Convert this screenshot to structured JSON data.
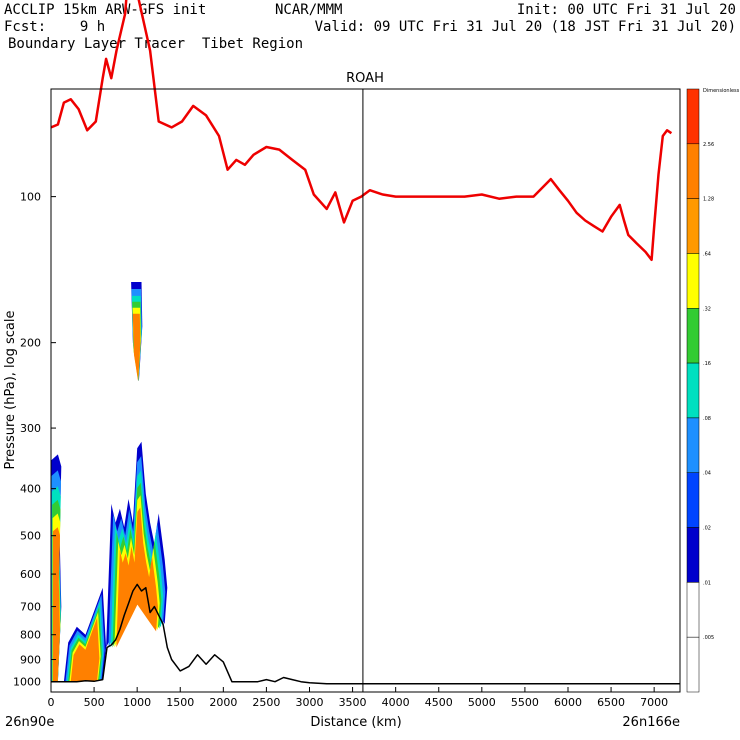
{
  "header": {
    "line1_left": "ACCLIP 15km ARW-GFS init",
    "line1_center": "NCAR/MMM",
    "line1_right": "Init: 00 UTC Fri 31 Jul 20",
    "line2_left": "Fcst:    9 h",
    "line2_right": "Valid: 09 UTC Fri 31 Jul 20 (18 JST Fri 31 Jul 20)",
    "line3_left": "Boundary Layer Tracer  Tibet Region"
  },
  "chart_data": {
    "type": "cross-section",
    "title": "ROAH",
    "xlabel": "Distance (km)",
    "ylabel": "Pressure (hPa), log scale",
    "xlim": [
      0,
      7300
    ],
    "ylim": [
      1050,
      60
    ],
    "x_ticks": [
      0,
      500,
      1000,
      1500,
      2000,
      2500,
      3000,
      3500,
      4000,
      4500,
      5000,
      5500,
      6000,
      6500,
      7000
    ],
    "y_ticks": [
      100,
      200,
      300,
      400,
      500,
      600,
      700,
      800,
      900,
      1000
    ],
    "start_label": "26n90e",
    "end_label": "26n166e",
    "marker_x": 3620,
    "colorbar": {
      "top_label": "Dimensionless",
      "levels": [
        "2.56",
        "1.28",
        ".64",
        ".32",
        ".16",
        ".08",
        ".04",
        ".02",
        ".01",
        ".005"
      ],
      "colors": [
        "#ff3300",
        "#ff8000",
        "#ff9900",
        "#ffff00",
        "#33cc33",
        "#00e0c0",
        "#1e90ff",
        "#0044ff",
        "#0000cc",
        "#ffffff",
        "#ffffff"
      ]
    },
    "series": [
      {
        "name": "tropopause",
        "color": "#ee0000",
        "x": [
          0,
          80,
          150,
          230,
          320,
          420,
          520,
          600,
          640,
          700,
          760,
          820,
          860,
          880,
          1000,
          1150,
          1250,
          1400,
          1520,
          1650,
          1800,
          1950,
          2050,
          2150,
          2250,
          2350,
          2500,
          2650,
          2800,
          2950,
          3050,
          3200,
          3300,
          3400,
          3500,
          3600,
          3700,
          3850,
          4000,
          4200,
          4400,
          4600,
          4800,
          5000,
          5200,
          5400,
          5600,
          5800,
          5900,
          6000,
          6100,
          6200,
          6300,
          6400,
          6500,
          6600,
          6650,
          6700,
          6800,
          6900,
          6970,
          7000,
          7050,
          7100,
          7150,
          7200
        ],
        "y": [
          72,
          71,
          64,
          63,
          66,
          73,
          70,
          57,
          52,
          57,
          50,
          45,
          42,
          38,
          38,
          50,
          70,
          72,
          70,
          65,
          68,
          75,
          88,
          84,
          86,
          82,
          79,
          80,
          84,
          88,
          99,
          106,
          98,
          113,
          102,
          100,
          97,
          99,
          100,
          100,
          100,
          100,
          100,
          99,
          101,
          100,
          100,
          92,
          97,
          102,
          108,
          112,
          115,
          118,
          110,
          104,
          112,
          120,
          125,
          130,
          135,
          115,
          90,
          75,
          73,
          74
        ]
      },
      {
        "name": "terrain",
        "color": "#000000",
        "x": [
          0,
          100,
          200,
          300,
          400,
          500,
          600,
          650,
          700,
          750,
          800,
          850,
          900,
          950,
          1000,
          1050,
          1100,
          1150,
          1200,
          1300,
          1350,
          1400,
          1500,
          1600,
          1700,
          1800,
          1900,
          2000,
          2100,
          2200,
          2300,
          2400,
          2500,
          2600,
          2700,
          2800,
          2900,
          3000,
          3200,
          3500,
          4000,
          5000,
          6000,
          7000,
          7300
        ],
        "y": [
          1000,
          1000,
          1000,
          1000,
          995,
          998,
          990,
          850,
          840,
          820,
          780,
          730,
          690,
          650,
          630,
          650,
          640,
          720,
          700,
          760,
          850,
          900,
          950,
          930,
          880,
          920,
          880,
          910,
          1000,
          1000,
          1000,
          1000,
          990,
          1000,
          980,
          990,
          1000,
          1005,
          1010,
          1010,
          1010,
          1010,
          1010,
          1010,
          1010
        ]
      }
    ],
    "tracer_regions": [
      {
        "name": "plume-1",
        "level": ".005",
        "x": [
          0,
          80,
          120,
          100,
          120,
          80,
          0
        ],
        "y": [
          1000,
          1000,
          700,
          500,
          360,
          340,
          350
        ]
      },
      {
        "name": "plume-2",
        "level": ".005",
        "x": [
          150,
          400,
          600,
          640,
          600,
          520,
          400,
          300,
          200,
          150
        ],
        "y": [
          1000,
          995,
          990,
          850,
          640,
          700,
          800,
          770,
          830,
          1000
        ]
      },
      {
        "name": "plume-3",
        "level": ".005",
        "x": [
          640,
          1000,
          1180,
          1320,
          1350,
          1320,
          1250,
          1200,
          1150,
          1100,
          1050,
          1000,
          950,
          900,
          850,
          800,
          750,
          700,
          640
        ],
        "y": [
          850,
          630,
          700,
          760,
          640,
          560,
          450,
          520,
          470,
          410,
          320,
          330,
          470,
          420,
          480,
          440,
          470,
          430,
          850
        ]
      },
      {
        "name": "plume-4",
        "level": ".005",
        "x": [
          930,
          1050,
          1060,
          1020,
          950,
          930
        ],
        "y": [
          150,
          150,
          185,
          240,
          200,
          150
        ]
      }
    ]
  }
}
